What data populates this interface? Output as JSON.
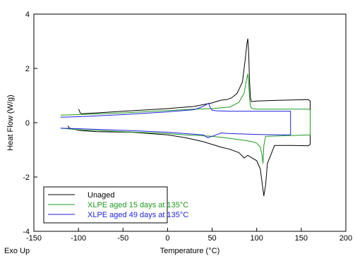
{
  "chart_data": {
    "type": "line",
    "xlabel": "Temperature (°C)",
    "ylabel": "Heat Flow (W/g)",
    "corner_label": "Exo Up",
    "xlim": [
      -150,
      200
    ],
    "ylim": [
      -4,
      4
    ],
    "xticks": [
      -150,
      -100,
      -50,
      0,
      50,
      100,
      150,
      200
    ],
    "yticks": [
      -4,
      -2,
      0,
      2,
      4
    ],
    "grid": false,
    "legend_position": "bottom-left",
    "series": [
      {
        "name": "Unaged",
        "color": "#000000",
        "x": [
          -100,
          -99,
          -98,
          -96,
          -80,
          -50,
          0,
          30,
          50,
          60,
          66,
          72,
          78,
          84,
          87,
          89,
          90,
          91,
          92,
          93,
          94,
          95,
          100,
          120,
          140,
          158,
          160,
          160,
          158,
          140,
          120,
          112,
          110,
          108,
          106,
          104,
          100,
          95,
          90,
          86,
          80,
          70,
          60,
          40,
          20,
          0,
          -40,
          -80,
          -100,
          -110,
          -112
        ],
        "y": [
          0.5,
          0.45,
          0.35,
          0.33,
          0.36,
          0.42,
          0.52,
          0.6,
          0.73,
          0.83,
          0.85,
          0.92,
          1.08,
          1.5,
          2.3,
          2.9,
          3.1,
          2.6,
          1.5,
          0.9,
          0.78,
          0.78,
          0.8,
          0.82,
          0.84,
          0.85,
          0.8,
          -0.8,
          -0.85,
          -0.84,
          -0.84,
          -1.5,
          -2.3,
          -2.7,
          -2.2,
          -1.7,
          -1.4,
          -1.3,
          -1.2,
          -1.3,
          -1.1,
          -0.98,
          -0.9,
          -0.7,
          -0.55,
          -0.45,
          -0.35,
          -0.33,
          -0.28,
          -0.2,
          -0.12
        ]
      },
      {
        "name": "XLPE aged 15 days at 135°C",
        "color": "#1f9a1f",
        "x": [
          -120,
          -100,
          -50,
          0,
          30,
          50,
          70,
          80,
          86,
          88,
          90,
          91,
          92,
          93,
          95,
          100,
          140,
          158,
          160,
          160,
          140,
          110,
          108,
          107,
          106,
          104,
          100,
          95,
          90,
          80,
          70,
          50,
          20,
          0,
          -50,
          -100,
          -120
        ],
        "y": [
          0.28,
          0.3,
          0.36,
          0.45,
          0.5,
          0.52,
          0.58,
          0.75,
          1.1,
          1.5,
          1.8,
          1.5,
          0.9,
          0.6,
          0.52,
          0.5,
          0.5,
          0.5,
          0.48,
          -0.45,
          -0.47,
          -0.5,
          -0.85,
          -1.5,
          -1.2,
          -0.9,
          -0.75,
          -0.7,
          -0.67,
          -0.62,
          -0.58,
          -0.5,
          -0.45,
          -0.4,
          -0.33,
          -0.26,
          -0.2
        ]
      },
      {
        "name": "XLPE aged 49 days at 135°C",
        "color": "#1f1fe0",
        "x": [
          -120,
          -100,
          -50,
          0,
          30,
          40,
          44,
          46,
          48,
          50,
          55,
          70,
          100,
          130,
          138,
          138,
          130,
          100,
          70,
          60,
          50,
          45,
          40,
          0,
          -50,
          -100,
          -120
        ],
        "y": [
          0.2,
          0.22,
          0.3,
          0.4,
          0.48,
          0.6,
          0.68,
          0.72,
          0.55,
          0.46,
          0.44,
          0.42,
          0.42,
          0.42,
          0.42,
          -0.45,
          -0.45,
          -0.43,
          -0.4,
          -0.38,
          -0.5,
          -0.55,
          -0.45,
          -0.35,
          -0.28,
          -0.22,
          -0.2
        ]
      }
    ]
  }
}
